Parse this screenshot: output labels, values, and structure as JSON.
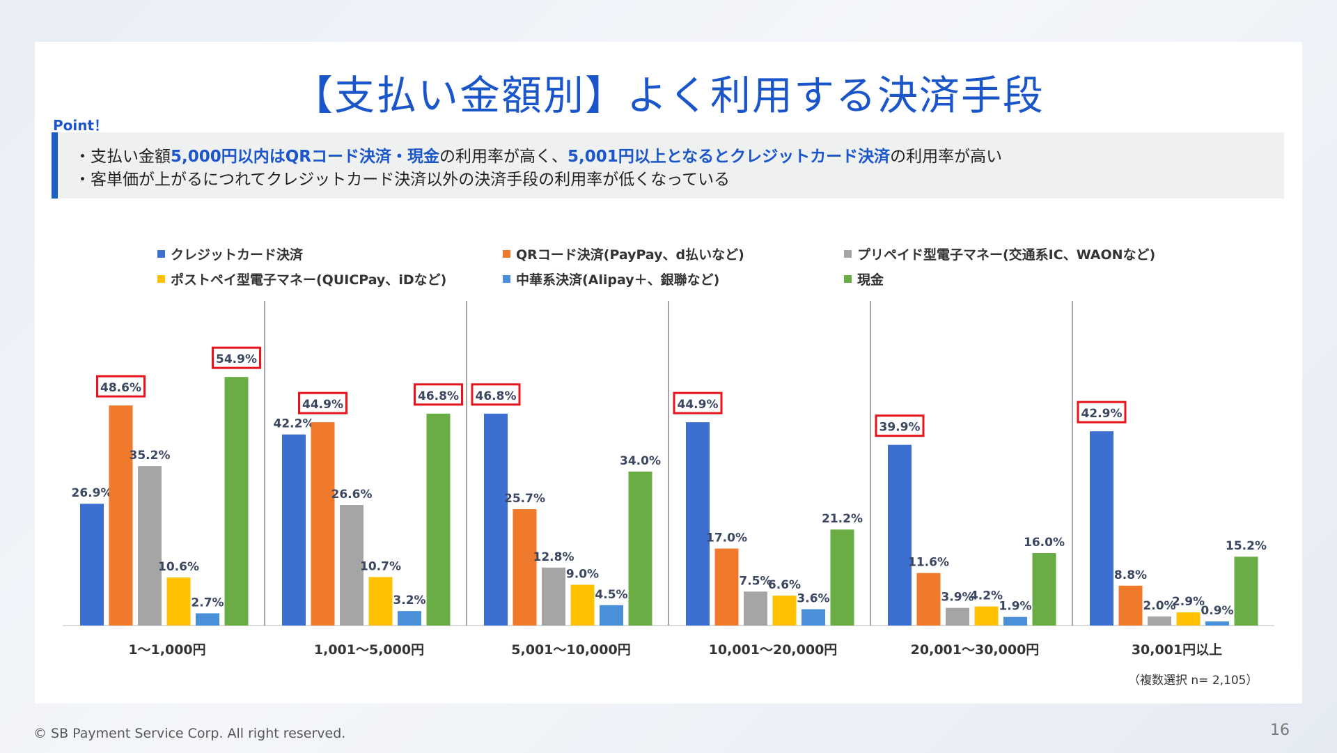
{
  "title": "【支払い金額別】よく利用する決済手段",
  "point": {
    "label": "Point！",
    "line1": [
      {
        "text": "・支払い金額",
        "hl": false
      },
      {
        "text": "5,000円以内はQRコード決済・現金",
        "hl": true
      },
      {
        "text": "の利用率が高く、",
        "hl": false
      },
      {
        "text": "5,001円以上となるとクレジットカード決済",
        "hl": true
      },
      {
        "text": "の利用率が高い",
        "hl": false
      }
    ],
    "line2": "・客単価が上がるにつれてクレジットカード決済以外の決済手段の利用率が低くなっている"
  },
  "note": "（複数選択 n= 2,105）",
  "footer": "© SB Payment Service Corp. All right reserved.",
  "page_number": "16",
  "chart_data": {
    "type": "bar",
    "categories": [
      "1～1,000円",
      "1,001～5,000円",
      "5,001～10,000円",
      "10,001～20,000円",
      "20,001～30,000円",
      "30,001円以上"
    ],
    "series": [
      {
        "name": "クレジットカード決済",
        "color": "#3c6fd0",
        "values": [
          26.9,
          42.2,
          46.8,
          44.9,
          39.9,
          42.9
        ]
      },
      {
        "name": "QRコード決済(PayPay、d払いなど)",
        "color": "#f07a2c",
        "values": [
          48.6,
          44.9,
          25.7,
          17.0,
          11.6,
          8.8
        ]
      },
      {
        "name": "プリペイド型電子マネー(交通系IC、WAONなど)",
        "color": "#a5a5a5",
        "values": [
          35.2,
          26.6,
          12.8,
          7.5,
          3.9,
          2.0
        ]
      },
      {
        "name": "ポストペイ型電子マネー(QUICPay、iDなど)",
        "color": "#ffc000",
        "values": [
          10.6,
          10.7,
          9.0,
          6.6,
          4.2,
          2.9
        ]
      },
      {
        "name": "中華系決済(Alipay＋、銀聯など)",
        "color": "#4a90d9",
        "values": [
          2.7,
          3.2,
          4.5,
          3.6,
          1.9,
          0.9
        ]
      },
      {
        "name": "現金",
        "color": "#6aad45",
        "values": [
          54.9,
          46.8,
          34.0,
          21.2,
          16.0,
          15.2
        ]
      }
    ],
    "highlighted": [
      [
        0,
        5
      ],
      [
        0,
        1
      ],
      [
        1,
        1
      ],
      [
        1,
        5
      ],
      [
        2,
        0
      ],
      [
        3,
        0
      ],
      [
        4,
        0
      ],
      [
        5,
        0
      ]
    ],
    "highlight_color": "#e8141b",
    "unit": "%",
    "ylim": [
      0,
      60
    ],
    "grid": false,
    "legend_position": "top"
  }
}
